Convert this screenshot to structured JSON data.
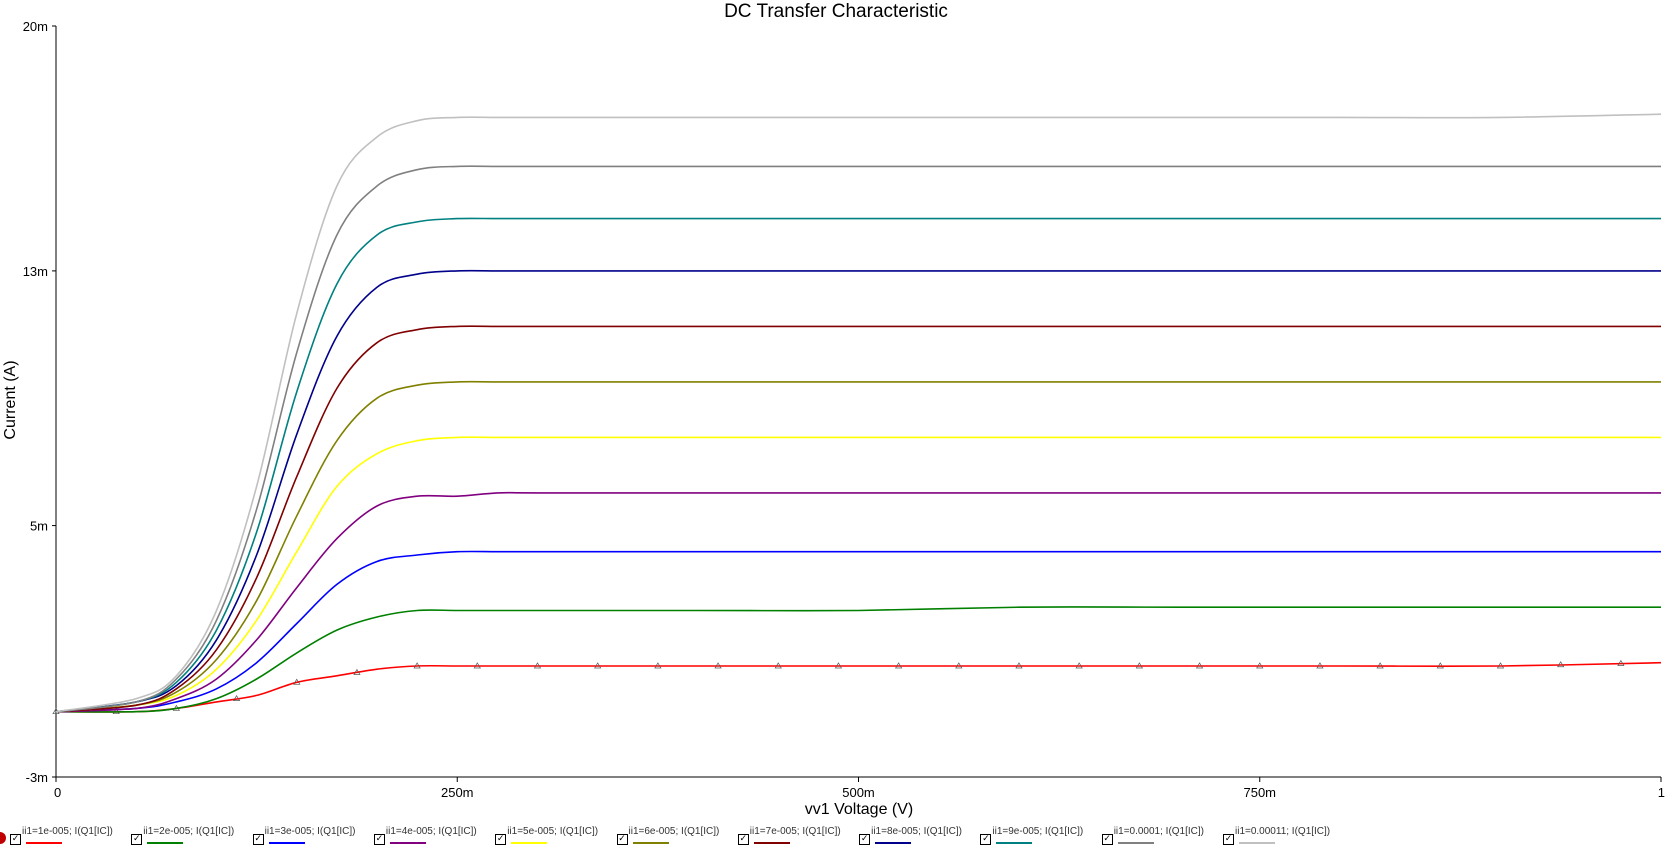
{
  "chart_data": {
    "type": "line",
    "title": "DC Transfer Characteristic",
    "xlabel": "vv1 Voltage (V)",
    "ylabel": "Current (A)",
    "xlim": [
      0,
      1
    ],
    "ylim": [
      -0.003,
      0.02
    ],
    "x_ticks": [
      {
        "v": 0,
        "label": "0"
      },
      {
        "v": 0.25,
        "label": "250m"
      },
      {
        "v": 0.5,
        "label": "500m"
      },
      {
        "v": 0.75,
        "label": "750m"
      },
      {
        "v": 1,
        "label": "1"
      }
    ],
    "y_ticks": [
      {
        "v": 0.02,
        "label": "20m"
      },
      {
        "v": 0.0125,
        "label": "13m"
      },
      {
        "v": 0.0047,
        "label": "5m"
      },
      {
        "v": -0.003,
        "label": "-3m"
      }
    ],
    "x": [
      0,
      0.05,
      0.075,
      0.1,
      0.125,
      0.15,
      0.175,
      0.2,
      0.225,
      0.25,
      0.275,
      0.3,
      0.4,
      0.5,
      0.6,
      0.7,
      0.8,
      0.9,
      1.0
    ],
    "series": [
      {
        "name": "ii1=1e-005; I(Q1[IC])",
        "color": "#ff0000",
        "marker": true,
        "values": [
          -0.001,
          -0.001,
          -0.0009,
          -0.0007,
          -0.0005,
          -0.0001,
          0.0001,
          0.0003,
          0.0004,
          0.0004,
          0.0004,
          0.0004,
          0.0004,
          0.0004,
          0.0004,
          0.0004,
          0.0004,
          0.0004,
          0.0005
        ]
      },
      {
        "name": "ii1=2e-005; I(Q1[IC])",
        "color": "#008000",
        "values": [
          -0.001,
          -0.001,
          -0.0009,
          -0.0006,
          0.0,
          0.0008,
          0.0015,
          0.0019,
          0.0021,
          0.0021,
          0.0021,
          0.0021,
          0.0021,
          0.0021,
          0.0022,
          0.0022,
          0.0022,
          0.0022,
          0.0022
        ]
      },
      {
        "name": "ii1=3e-005; I(Q1[IC])",
        "color": "#0000ff",
        "values": [
          -0.001,
          -0.0009,
          -0.0007,
          -0.0003,
          0.0005,
          0.0017,
          0.0029,
          0.0036,
          0.0038,
          0.0039,
          0.0039,
          0.0039,
          0.0039,
          0.0039,
          0.0039,
          0.0039,
          0.0039,
          0.0039,
          0.0039
        ]
      },
      {
        "name": "ii1=4e-005; I(Q1[IC])",
        "color": "#800080",
        "values": [
          -0.001,
          -0.0009,
          -0.0006,
          0.0,
          0.0012,
          0.0028,
          0.0043,
          0.0053,
          0.0056,
          0.0056,
          0.0057,
          0.0057,
          0.0057,
          0.0057,
          0.0057,
          0.0057,
          0.0057,
          0.0057,
          0.0057
        ]
      },
      {
        "name": "ii1=5e-005; I(Q1[IC])",
        "color": "#ffff00",
        "values": [
          -0.001,
          -0.0008,
          -0.0005,
          0.0003,
          0.0018,
          0.0039,
          0.0059,
          0.0069,
          0.0073,
          0.0074,
          0.0074,
          0.0074,
          0.0074,
          0.0074,
          0.0074,
          0.0074,
          0.0074,
          0.0074,
          0.0074
        ]
      },
      {
        "name": "ii1=6e-005; I(Q1[IC])",
        "color": "#808000",
        "values": [
          -0.001,
          -0.0008,
          -0.0004,
          0.0006,
          0.0024,
          0.005,
          0.0073,
          0.0086,
          0.009,
          0.0091,
          0.0091,
          0.0091,
          0.0091,
          0.0091,
          0.0091,
          0.0091,
          0.0091,
          0.0091,
          0.0091
        ]
      },
      {
        "name": "ii1=7e-005; I(Q1[IC])",
        "color": "#800000",
        "values": [
          -0.001,
          -0.0008,
          -0.0003,
          0.0009,
          0.0031,
          0.0062,
          0.0089,
          0.0103,
          0.0107,
          0.0108,
          0.0108,
          0.0108,
          0.0108,
          0.0108,
          0.0108,
          0.0108,
          0.0108,
          0.0108,
          0.0108
        ]
      },
      {
        "name": "ii1=8e-005; I(Q1[IC])",
        "color": "#00008b",
        "values": [
          -0.001,
          -0.0007,
          -0.0002,
          0.0012,
          0.0038,
          0.0075,
          0.0105,
          0.012,
          0.0124,
          0.0125,
          0.0125,
          0.0125,
          0.0125,
          0.0125,
          0.0125,
          0.0125,
          0.0125,
          0.0125,
          0.0125
        ]
      },
      {
        "name": "ii1=9e-005; I(Q1[IC])",
        "color": "#008080",
        "values": [
          -0.001,
          -0.0007,
          -0.0001,
          0.0015,
          0.0045,
          0.0088,
          0.0121,
          0.0136,
          0.014,
          0.0141,
          0.0141,
          0.0141,
          0.0141,
          0.0141,
          0.0141,
          0.0141,
          0.0141,
          0.0141,
          0.0141
        ]
      },
      {
        "name": "ii1=0.0001; I(Q1[IC])",
        "color": "#808080",
        "values": [
          -0.001,
          -0.0007,
          0.0,
          0.0018,
          0.0052,
          0.01,
          0.0136,
          0.0151,
          0.0156,
          0.0157,
          0.0157,
          0.0157,
          0.0157,
          0.0157,
          0.0157,
          0.0157,
          0.0157,
          0.0157,
          0.0157
        ]
      },
      {
        "name": "ii1=0.00011; I(Q1[IC])",
        "color": "#c0c0c0",
        "values": [
          -0.001,
          -0.0006,
          0.0001,
          0.0021,
          0.0059,
          0.0112,
          0.0151,
          0.0166,
          0.0171,
          0.0172,
          0.0172,
          0.0172,
          0.0172,
          0.0172,
          0.0172,
          0.0172,
          0.0172,
          0.0172,
          0.0173
        ]
      }
    ],
    "grid": false,
    "legend_placement": "bottom"
  }
}
